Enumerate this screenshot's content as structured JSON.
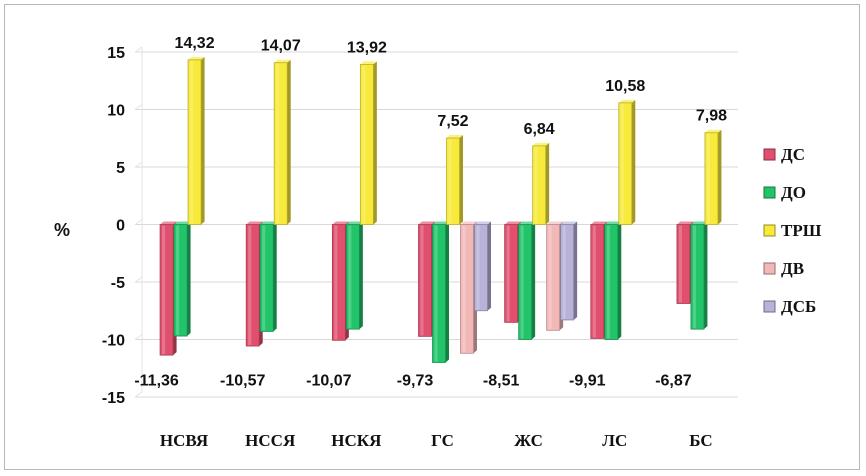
{
  "chart_data": {
    "type": "bar",
    "ylabel": "%",
    "xlabel": "",
    "title": "",
    "ylim": [
      -15,
      15
    ],
    "ytick_labels": [
      "15",
      "10",
      "5",
      "0",
      "-5",
      "-10",
      "-15"
    ],
    "yticks": [
      15,
      10,
      5,
      0,
      -5,
      -10,
      -15
    ],
    "grid": true,
    "legend_position": "right",
    "categories": [
      "НСВЯ",
      "НССЯ",
      "НСКЯ",
      "ГС",
      "ЖС",
      "ЛС",
      "БС"
    ],
    "series": [
      {
        "name": "ДС",
        "color": "#e0506e",
        "values": [
          -11.36,
          -10.57,
          -10.07,
          -9.73,
          -8.51,
          -9.91,
          -6.87
        ]
      },
      {
        "name": "ДО",
        "color": "#22c46a",
        "values": [
          -9.7,
          -9.3,
          -9.1,
          -12.0,
          -10.0,
          -10.0,
          -9.1
        ]
      },
      {
        "name": "ТРШ",
        "color": "#f7ea3a",
        "values": [
          14.32,
          14.07,
          13.92,
          7.52,
          6.84,
          10.58,
          7.98
        ]
      },
      {
        "name": "ДВ",
        "color": "#f2b8b8",
        "values": [
          null,
          null,
          null,
          -11.2,
          -9.2,
          null,
          null
        ]
      },
      {
        "name": "ДСБ",
        "color": "#b7b2d8",
        "values": [
          null,
          null,
          null,
          -7.5,
          -8.3,
          null,
          null
        ]
      }
    ],
    "data_labels": [
      {
        "text": "-11,36",
        "category": 0,
        "series": "ДС"
      },
      {
        "text": "-10,57",
        "category": 1,
        "series": "ДС"
      },
      {
        "text": "-10,07",
        "category": 2,
        "series": "ДС"
      },
      {
        "text": "-9,73",
        "category": 3,
        "series": "ДС"
      },
      {
        "text": "-8,51",
        "category": 4,
        "series": "ДС"
      },
      {
        "text": "-9,91",
        "category": 5,
        "series": "ДС"
      },
      {
        "text": "-6,87",
        "category": 6,
        "series": "ДС"
      },
      {
        "text": "14,32",
        "category": 0,
        "series": "ТРШ"
      },
      {
        "text": "14,07",
        "category": 1,
        "series": "ТРШ"
      },
      {
        "text": "13,92",
        "category": 2,
        "series": "ТРШ"
      },
      {
        "text": "7,52",
        "category": 3,
        "series": "ТРШ"
      },
      {
        "text": "6,84",
        "category": 4,
        "series": "ТРШ"
      },
      {
        "text": "10,58",
        "category": 5,
        "series": "ТРШ"
      },
      {
        "text": "7,98",
        "category": 6,
        "series": "ТРШ"
      }
    ]
  }
}
